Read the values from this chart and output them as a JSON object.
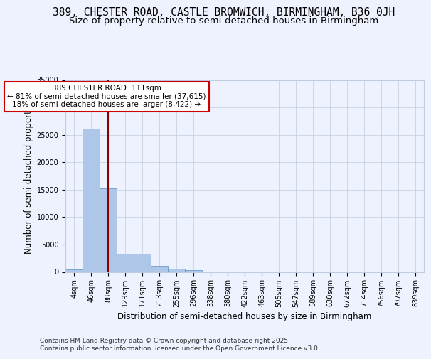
{
  "title_line1": "389, CHESTER ROAD, CASTLE BROMWICH, BIRMINGHAM, B36 0JH",
  "title_line2": "Size of property relative to semi-detached houses in Birmingham",
  "xlabel": "Distribution of semi-detached houses by size in Birmingham",
  "ylabel": "Number of semi-detached properties",
  "footer_line1": "Contains HM Land Registry data © Crown copyright and database right 2025.",
  "footer_line2": "Contains public sector information licensed under the Open Government Licence v3.0.",
  "bin_labels": [
    "4sqm",
    "46sqm",
    "88sqm",
    "129sqm",
    "171sqm",
    "213sqm",
    "255sqm",
    "296sqm",
    "338sqm",
    "380sqm",
    "422sqm",
    "463sqm",
    "505sqm",
    "547sqm",
    "589sqm",
    "630sqm",
    "672sqm",
    "714sqm",
    "756sqm",
    "797sqm",
    "839sqm"
  ],
  "bar_values": [
    400,
    26100,
    15200,
    3350,
    3350,
    1050,
    550,
    350,
    0,
    0,
    0,
    0,
    0,
    0,
    0,
    0,
    0,
    0,
    0,
    0,
    0
  ],
  "bar_color": "#aec6e8",
  "bar_edge_color": "#5a8fc0",
  "property_size": 111,
  "property_bin_index": 2,
  "annotation_text": "389 CHESTER ROAD: 111sqm\n← 81% of semi-detached houses are smaller (37,615)\n18% of semi-detached houses are larger (8,422) →",
  "vline_color": "#8b0000",
  "annotation_box_color": "#ffffff",
  "annotation_box_edge_color": "#cc0000",
  "ylim": [
    0,
    35000
  ],
  "yticks": [
    0,
    5000,
    10000,
    15000,
    20000,
    25000,
    30000,
    35000
  ],
  "background_color": "#eef2ff",
  "plot_background": "#eef2ff",
  "grid_color": "#c0cce0",
  "title_fontsize": 10.5,
  "subtitle_fontsize": 9.5,
  "axis_label_fontsize": 8.5,
  "tick_fontsize": 7,
  "footer_fontsize": 6.5
}
